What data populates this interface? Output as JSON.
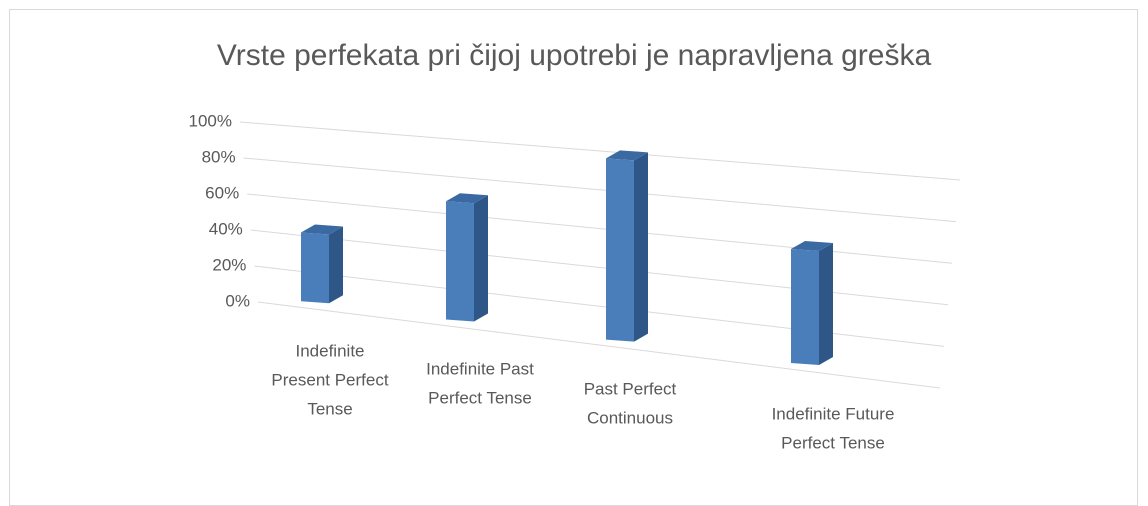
{
  "chart_data": {
    "type": "bar3d",
    "title": "Vrste perfekata pri čijoj upotrebi je napravljena greška",
    "categories": [
      [
        "Indefinite",
        "Present Perfect",
        "Tense"
      ],
      [
        "Indefinite Past",
        "Perfect Tense"
      ],
      [
        "Past Perfect",
        "Continuous"
      ],
      [
        "Indefinite Future",
        "Perfect Tense"
      ]
    ],
    "values": [
      39,
      64,
      94,
      57
    ],
    "color": "#4a7ebb",
    "ylim": [
      0,
      100
    ],
    "yticks": [
      {
        "value": 0,
        "label": "0%"
      },
      {
        "value": 20,
        "label": "20%"
      },
      {
        "value": 40,
        "label": "40%"
      },
      {
        "value": 60,
        "label": "60%"
      },
      {
        "value": 80,
        "label": "80%"
      },
      {
        "value": 100,
        "label": "100%"
      }
    ],
    "grid": true
  }
}
